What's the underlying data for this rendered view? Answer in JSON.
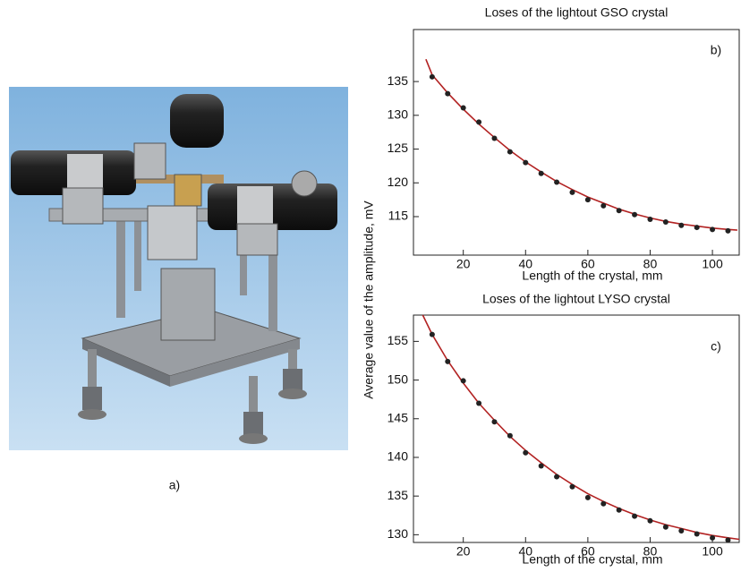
{
  "panel_a_label": "a)",
  "y_label": "Average value of the amplitude, mV",
  "chart_data": [
    {
      "type": "scatter",
      "title": "Loses of the lightout GSO crystal",
      "panel_label": "b)",
      "x_label": "Length of  the crystal, mm",
      "xlim": [
        4,
        108.6
      ],
      "xticks": [
        20,
        40,
        60,
        80,
        100
      ],
      "ylim": [
        109.3,
        142.7
      ],
      "yticks": [
        115,
        120,
        125,
        130,
        135
      ],
      "series": [
        {
          "type": "scatter",
          "color": "#222222",
          "x": [
            10,
            15,
            20,
            25,
            30,
            35,
            40,
            45,
            50,
            55,
            60,
            65,
            70,
            75,
            80,
            85,
            90,
            95,
            100,
            105
          ],
          "values": [
            135.7,
            133.2,
            131.1,
            129.0,
            126.6,
            124.6,
            123.0,
            121.4,
            120.1,
            118.6,
            117.5,
            116.6,
            115.9,
            115.3,
            114.6,
            114.2,
            113.7,
            113.4,
            113.1,
            112.9
          ]
        },
        {
          "type": "line",
          "color": "#b22222",
          "x": [
            8,
            10,
            15,
            20,
            25,
            30,
            35,
            40,
            45,
            50,
            55,
            60,
            65,
            70,
            75,
            80,
            85,
            90,
            95,
            100,
            105,
            108
          ],
          "values": [
            138.3,
            136.0,
            133.3,
            130.9,
            128.7,
            126.7,
            124.8,
            123.1,
            121.6,
            120.2,
            119.0,
            117.9,
            117.0,
            116.1,
            115.4,
            114.8,
            114.3,
            113.9,
            113.6,
            113.3,
            113.1,
            113.0
          ]
        }
      ]
    },
    {
      "type": "scatter",
      "title": "Loses of the lightout LYSO crystal",
      "panel_label": "c)",
      "x_label": "Length of  the crystal, mm",
      "xlim": [
        4,
        108.6
      ],
      "xticks": [
        20,
        40,
        60,
        80,
        100
      ],
      "ylim": [
        129.0,
        158.4
      ],
      "yticks": [
        130,
        135,
        140,
        145,
        150,
        155
      ],
      "series": [
        {
          "type": "scatter",
          "color": "#222222",
          "x": [
            10,
            15,
            20,
            25,
            30,
            35,
            40,
            45,
            50,
            55,
            60,
            65,
            70,
            75,
            80,
            85,
            90,
            95,
            100,
            105
          ],
          "values": [
            155.9,
            152.4,
            149.9,
            147.0,
            144.6,
            142.8,
            140.6,
            138.9,
            137.5,
            136.2,
            134.8,
            134.0,
            133.2,
            132.4,
            131.8,
            131.0,
            130.5,
            130.1,
            129.6,
            129.3
          ]
        },
        {
          "type": "line",
          "color": "#b22222",
          "x": [
            7,
            10,
            15,
            20,
            25,
            30,
            35,
            40,
            45,
            50,
            55,
            60,
            65,
            70,
            75,
            80,
            85,
            90,
            95,
            100,
            105,
            108.6
          ],
          "values": [
            158.4,
            155.9,
            152.5,
            149.6,
            147.0,
            144.8,
            142.7,
            140.9,
            139.3,
            137.8,
            136.5,
            135.3,
            134.3,
            133.4,
            132.6,
            131.9,
            131.3,
            130.8,
            130.3,
            129.9,
            129.6,
            129.4
          ]
        }
      ]
    }
  ]
}
